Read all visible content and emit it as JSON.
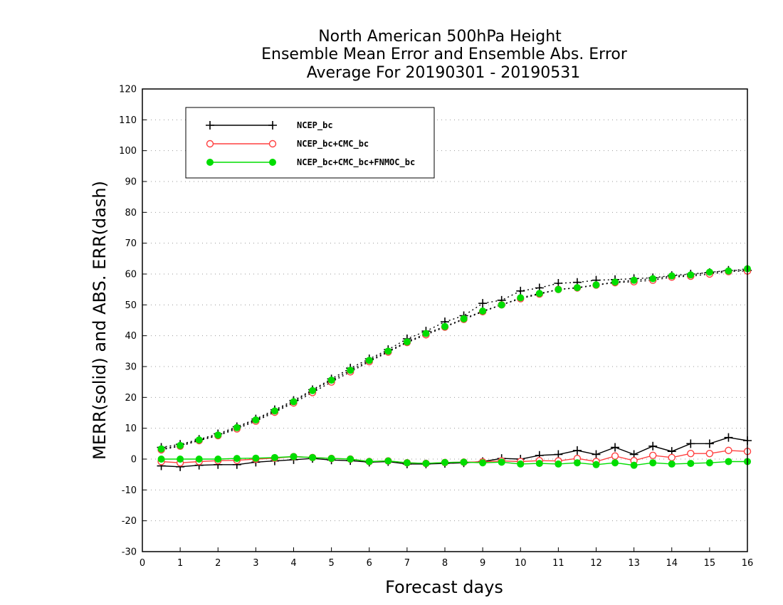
{
  "chart_data": {
    "type": "line",
    "title_lines": [
      "North American 500hPa Height",
      "Ensemble Mean Error and Ensemble Abs. Error",
      "Average For 20190301 - 20190531"
    ],
    "xlabel": "Forecast days",
    "ylabel": "MERR(solid) and ABS. ERR(dash)",
    "xlim": [
      0,
      16
    ],
    "ylim": [
      -30,
      120
    ],
    "xticks": [
      "0",
      "1",
      "2",
      "3",
      "4",
      "5",
      "6",
      "7",
      "8",
      "9",
      "10",
      "11",
      "12",
      "13",
      "14",
      "15",
      "16"
    ],
    "yticks": [
      "-30",
      "-20",
      "-10",
      "0",
      "10",
      "20",
      "30",
      "40",
      "50",
      "60",
      "70",
      "80",
      "90",
      "100",
      "110",
      "120"
    ],
    "grid": "horizontal dotted",
    "legend_position": "top-left",
    "x": [
      0.5,
      1,
      1.5,
      2,
      2.5,
      3,
      3.5,
      4,
      4.5,
      5,
      5.5,
      6,
      6.5,
      7,
      7.5,
      8,
      8.5,
      9,
      9.5,
      10,
      10.5,
      11,
      11.5,
      12,
      12.5,
      13,
      13.5,
      14,
      14.5,
      15,
      15.5,
      16
    ],
    "series": [
      {
        "name": "NCEP_bc",
        "color": "#000000",
        "marker": "plus",
        "merr": [
          -2.2,
          -2.5,
          -2,
          -1.8,
          -1.8,
          -1,
          -0.6,
          -0.2,
          0.2,
          -0.3,
          -0.5,
          -1,
          -0.8,
          -1.6,
          -1.6,
          -1.4,
          -1.2,
          -0.8,
          0.2,
          0,
          1.2,
          1.5,
          2.8,
          1.5,
          3.8,
          1.5,
          4.2,
          2.5,
          5,
          5,
          7,
          6
        ],
        "abserr": [
          3.8,
          4.8,
          6.4,
          8.2,
          10.5,
          13,
          16,
          19,
          22.5,
          26,
          29.5,
          32.5,
          35.5,
          39,
          41.5,
          44.5,
          46.5,
          50.5,
          51.5,
          54.5,
          55.5,
          57,
          57.3,
          58,
          58.2,
          58.5,
          58.8,
          59.5,
          60,
          60.5,
          61.2,
          61.2
        ]
      },
      {
        "name": "NCEP_bc+CMC_bc",
        "color": "#ff4040",
        "marker": "open-circle",
        "merr": [
          -0.8,
          -1.2,
          -0.8,
          -0.5,
          -0.4,
          0,
          0.3,
          0.8,
          0.5,
          0.2,
          0,
          -0.8,
          -0.6,
          -1.2,
          -1.4,
          -1.1,
          -1,
          -0.9,
          -0.6,
          -0.8,
          -0.5,
          -0.6,
          0.2,
          -0.8,
          1,
          -0.5,
          1.2,
          0.5,
          1.8,
          1.8,
          2.8,
          2.5
        ],
        "abserr": [
          3,
          4.2,
          6,
          7.6,
          9.8,
          12.3,
          15.2,
          18.2,
          21.6,
          25,
          28.3,
          31.6,
          34.7,
          37.8,
          40.3,
          42.8,
          45.3,
          47.8,
          50,
          52,
          53.5,
          55,
          55.5,
          56.4,
          57.2,
          57.5,
          58,
          59,
          59.3,
          60,
          60.8,
          61
        ]
      },
      {
        "name": "NCEP_bc+CMC_bc+FNMOC_bc",
        "color": "#00dd00",
        "marker": "filled-circle",
        "merr": [
          0,
          0,
          0,
          0,
          0.2,
          0.3,
          0.5,
          0.8,
          0.5,
          0.2,
          0,
          -0.8,
          -0.6,
          -1.2,
          -1.4,
          -1.1,
          -1,
          -1.2,
          -1,
          -1.6,
          -1.4,
          -1.6,
          -1.2,
          -1.8,
          -1.2,
          -2,
          -1.2,
          -1.6,
          -1.4,
          -1.2,
          -0.8,
          -0.8
        ],
        "abserr": [
          3.3,
          4.4,
          6.2,
          7.8,
          10.2,
          12.7,
          15.6,
          18.6,
          22.2,
          25.6,
          28.8,
          32,
          35,
          38,
          40.7,
          43,
          45.5,
          48,
          50,
          52.3,
          53.7,
          55,
          55.6,
          56.5,
          57.4,
          58,
          58.5,
          59.4,
          59.7,
          60.6,
          61,
          61.7
        ]
      }
    ]
  }
}
